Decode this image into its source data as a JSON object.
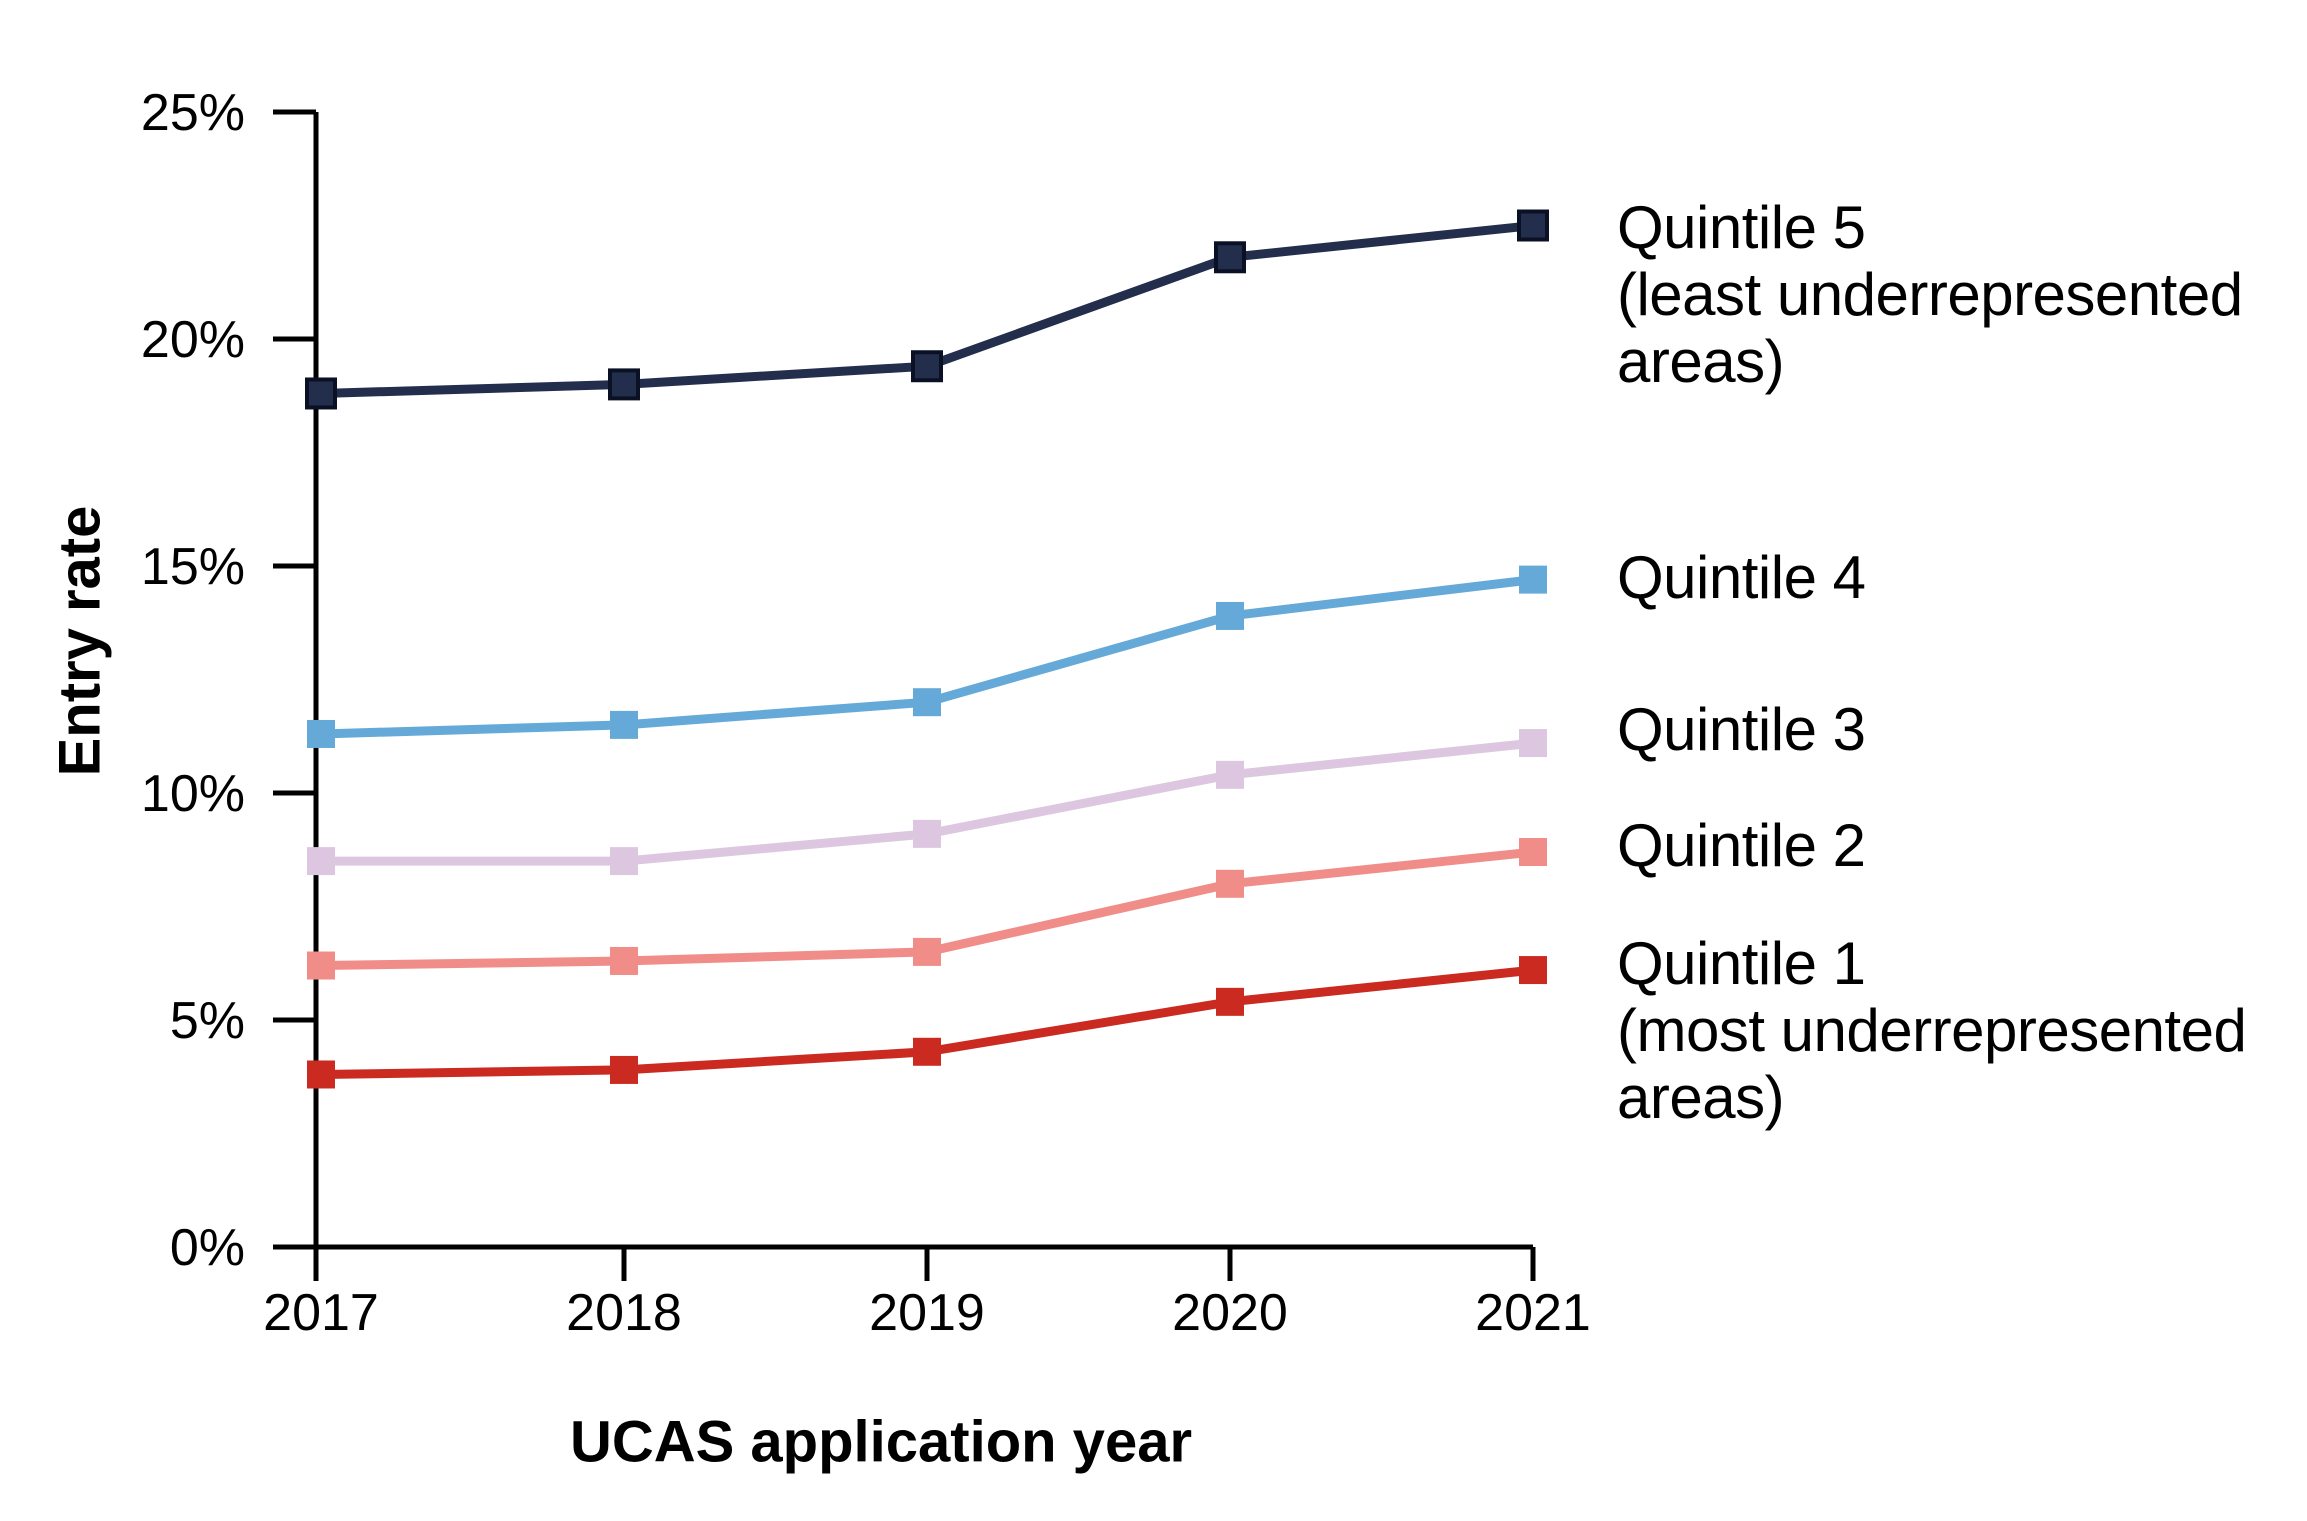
{
  "chart_data": {
    "type": "line",
    "x": [
      2017,
      2018,
      2019,
      2020,
      2021
    ],
    "x_tick_labels": [
      "2017",
      "2018",
      "2019",
      "2020",
      "2021"
    ],
    "xlabel": "UCAS application year",
    "ylabel": "Entry rate",
    "y_ticks": [
      0,
      5,
      10,
      15,
      20,
      25
    ],
    "y_tick_labels": [
      "0%",
      "5%",
      "10%",
      "15%",
      "20%",
      "25%"
    ],
    "ylim": [
      0,
      25
    ],
    "grid": false,
    "legend_position": "right",
    "series": [
      {
        "name": "Quintile 5",
        "label_lines": [
          "Quintile 5",
          "(least underrepresented",
          "areas)"
        ],
        "color": "#232e4d",
        "marker_border": "#0b1124",
        "values": [
          18.8,
          19.0,
          19.4,
          21.8,
          22.5
        ]
      },
      {
        "name": "Quintile 4",
        "label_lines": [
          "Quintile 4"
        ],
        "color": "#65a9d8",
        "values": [
          11.3,
          11.5,
          12.0,
          13.9,
          14.7
        ]
      },
      {
        "name": "Quintile 3",
        "label_lines": [
          "Quintile 3"
        ],
        "color": "#ddc6e0",
        "values": [
          8.5,
          8.5,
          9.1,
          10.4,
          11.1
        ]
      },
      {
        "name": "Quintile 2",
        "label_lines": [
          "Quintile 2"
        ],
        "color": "#f08d89",
        "values": [
          6.2,
          6.3,
          6.5,
          8.0,
          8.7
        ]
      },
      {
        "name": "Quintile 1",
        "label_lines": [
          "Quintile 1",
          "(most underrepresented",
          "areas)"
        ],
        "color": "#cb2a21",
        "values": [
          3.8,
          3.9,
          4.3,
          5.4,
          6.1
        ]
      }
    ]
  }
}
